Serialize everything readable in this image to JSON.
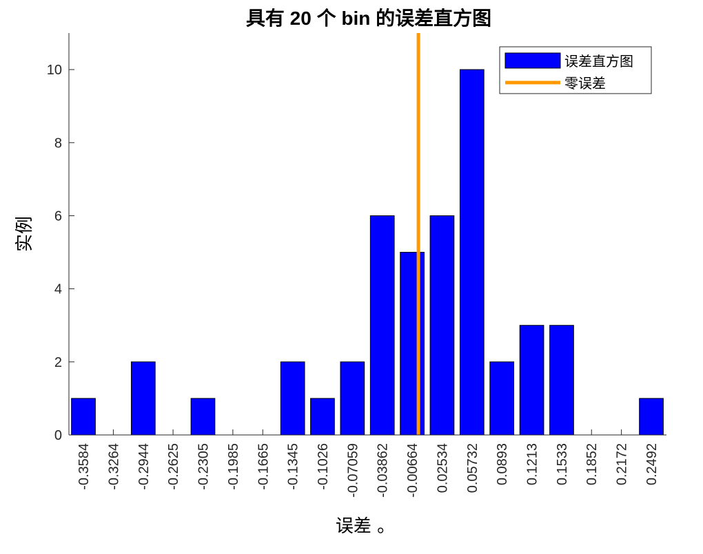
{
  "chart_data": {
    "type": "bar",
    "title": "具有 20 个 bin 的误差直方图",
    "xlabel": "误差 。",
    "ylabel": "实例",
    "x": [
      -0.3584,
      -0.3264,
      -0.2944,
      -0.2625,
      -0.2305,
      -0.1985,
      -0.1665,
      -0.1345,
      -0.1026,
      -0.07059,
      -0.03862,
      -0.00664,
      0.02534,
      0.05732,
      0.0893,
      0.1213,
      0.1533,
      0.1852,
      0.2172,
      0.2492
    ],
    "xticks": [
      -0.3584,
      -0.3264,
      -0.2944,
      -0.2625,
      -0.2305,
      -0.1985,
      -0.1665,
      -0.1345,
      -0.1026,
      -0.07059,
      -0.03862,
      -0.00664,
      0.02534,
      0.05732,
      0.0893,
      0.1213,
      0.1533,
      0.1852,
      0.2172,
      0.2492
    ],
    "xlim": [
      -0.3739,
      0.2654
    ],
    "series": [
      {
        "name": "误差直方图",
        "color": "#0000ff",
        "values": [
          1,
          0,
          2,
          0,
          1,
          0,
          0,
          2,
          1,
          2,
          6,
          5,
          6,
          10,
          2,
          3,
          3,
          0,
          0,
          1
        ]
      }
    ],
    "reference_line": {
      "name": "零误差",
      "x": 0,
      "color": "#ff9900"
    },
    "ylim": [
      0,
      11
    ],
    "yticks": [
      0,
      2,
      4,
      6,
      8,
      10
    ],
    "legend": "upper right"
  }
}
